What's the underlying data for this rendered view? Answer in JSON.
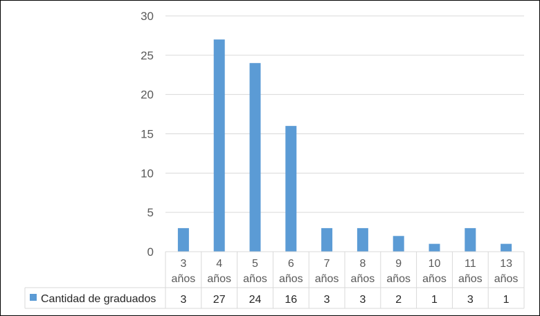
{
  "chart_data": {
    "type": "bar",
    "categories": [
      [
        "3",
        "años"
      ],
      [
        "4",
        "años"
      ],
      [
        "5",
        "años"
      ],
      [
        "6",
        "años"
      ],
      [
        "7",
        "años"
      ],
      [
        "8",
        "años"
      ],
      [
        "9",
        "años"
      ],
      [
        "10",
        "años"
      ],
      [
        "11",
        "años"
      ],
      [
        "13",
        "años"
      ]
    ],
    "series": [
      {
        "name": "Cantidad de graduados",
        "values": [
          3,
          27,
          24,
          16,
          3,
          3,
          2,
          1,
          3,
          1
        ]
      }
    ],
    "ylim": [
      0,
      30
    ],
    "yticks": [
      0,
      5,
      10,
      15,
      20,
      25,
      30
    ],
    "title": "",
    "xlabel": "",
    "ylabel": "",
    "grid": true,
    "legend_placement": "data-table-left",
    "colors": {
      "bar": "#5B9BD5",
      "grid": "#D9D9D9",
      "table_border": "#D9D9D9"
    }
  }
}
